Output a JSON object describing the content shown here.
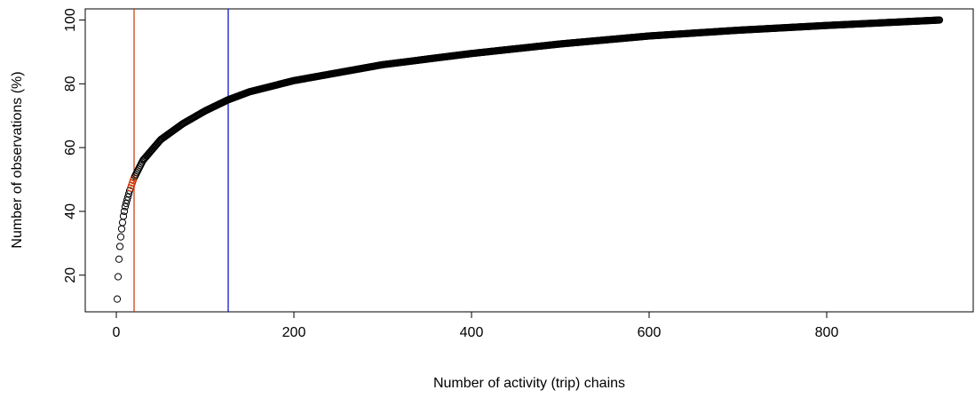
{
  "chart_data": {
    "type": "scatter",
    "title": "",
    "xlabel": "Number of activity (trip) chains",
    "ylabel": "Number of observations (%)",
    "xlim": [
      -35,
      965
    ],
    "ylim": [
      8.5,
      103.5
    ],
    "xticks": [
      0,
      200,
      400,
      600,
      800
    ],
    "yticks": [
      20,
      40,
      60,
      80,
      100
    ],
    "grid": false,
    "legend": "none",
    "series": [
      {
        "marker": "open-circle",
        "color": "#000000",
        "highlight_color": "#cc3300",
        "highlight_x_max": 20,
        "x_range": [
          1,
          927
        ],
        "y_range": [
          12.5,
          100
        ],
        "curve_anchor_points": [
          {
            "x": 1,
            "y": 12.5
          },
          {
            "x": 2,
            "y": 19.5
          },
          {
            "x": 3,
            "y": 25
          },
          {
            "x": 4,
            "y": 29
          },
          {
            "x": 5,
            "y": 32
          },
          {
            "x": 6,
            "y": 34.5
          },
          {
            "x": 8,
            "y": 38.5
          },
          {
            "x": 10,
            "y": 41.5
          },
          {
            "x": 15,
            "y": 46.5
          },
          {
            "x": 20,
            "y": 50.5
          },
          {
            "x": 30,
            "y": 56
          },
          {
            "x": 50,
            "y": 62.5
          },
          {
            "x": 75,
            "y": 67.5
          },
          {
            "x": 100,
            "y": 71.5
          },
          {
            "x": 126,
            "y": 75
          },
          {
            "x": 150,
            "y": 77.5
          },
          {
            "x": 200,
            "y": 81
          },
          {
            "x": 300,
            "y": 86
          },
          {
            "x": 400,
            "y": 89.5
          },
          {
            "x": 500,
            "y": 92.5
          },
          {
            "x": 600,
            "y": 95
          },
          {
            "x": 700,
            "y": 96.8
          },
          {
            "x": 800,
            "y": 98.3
          },
          {
            "x": 927,
            "y": 100
          }
        ]
      }
    ],
    "vertical_lines": [
      {
        "x": 20,
        "color": "#cc3300"
      },
      {
        "x": 126,
        "color": "#0000cc"
      }
    ]
  }
}
